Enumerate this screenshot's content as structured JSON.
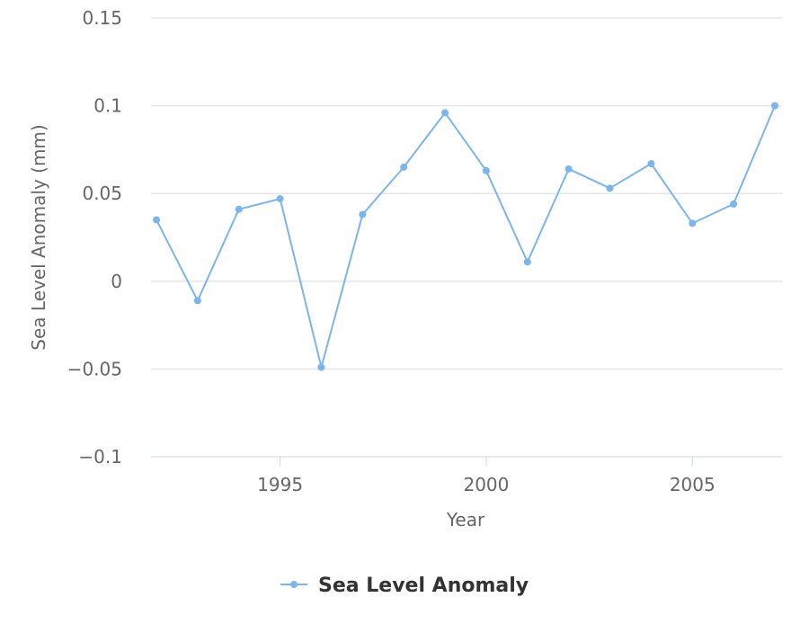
{
  "chart_data": {
    "type": "line",
    "title": "",
    "xlabel": "Year",
    "ylabel": "Sea Level Anomaly (mm)",
    "xlim": [
      1992,
      2007
    ],
    "ylim": [
      -0.1,
      0.15
    ],
    "x_ticks": [
      1995,
      2000,
      2005
    ],
    "y_ticks": [
      -0.1,
      -0.05,
      0,
      0.05,
      0.1,
      0.15
    ],
    "y_tick_labels": [
      "−0.1",
      "−0.05",
      "0",
      "0.05",
      "0.1",
      "0.15"
    ],
    "x_tick_labels": [
      "1995",
      "2000",
      "2005"
    ],
    "grid": "horizontal",
    "legend_position": "bottom-center",
    "series": [
      {
        "name": "Sea Level Anomaly",
        "color": "#7cb5ec",
        "x": [
          1992,
          1993,
          1994,
          1995,
          1996,
          1997,
          1998,
          1999,
          2000,
          2001,
          2002,
          2003,
          2004,
          2005,
          2006,
          2007
        ],
        "values": [
          0.035,
          -0.011,
          0.041,
          0.047,
          -0.049,
          0.038,
          0.065,
          0.096,
          0.063,
          0.011,
          0.064,
          0.053,
          0.067,
          0.033,
          0.044,
          0.1
        ]
      }
    ]
  }
}
